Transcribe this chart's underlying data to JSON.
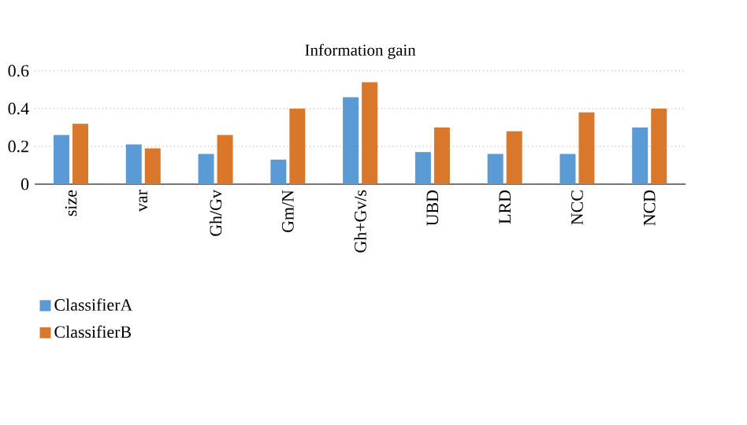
{
  "chart_data": {
    "type": "bar",
    "title": "Information gain",
    "categories": [
      "size",
      "var",
      "Gh/Gv",
      "Gm/N",
      "Gh+Gv/s",
      "UBD",
      "LRD",
      "NCC",
      "NCD"
    ],
    "series": [
      {
        "name": "ClassifierA",
        "color": "#5b9bd5",
        "values": [
          0.26,
          0.21,
          0.16,
          0.13,
          0.46,
          0.17,
          0.16,
          0.16,
          0.3
        ]
      },
      {
        "name": "ClassifierB",
        "color": "#d9782b",
        "values": [
          0.32,
          0.19,
          0.26,
          0.4,
          0.54,
          0.3,
          0.28,
          0.38,
          0.4
        ]
      }
    ],
    "ylim": [
      0,
      0.6
    ],
    "yticks": [
      0,
      0.2,
      0.4,
      0.6
    ],
    "grid": "y",
    "legend": "bottom left"
  }
}
